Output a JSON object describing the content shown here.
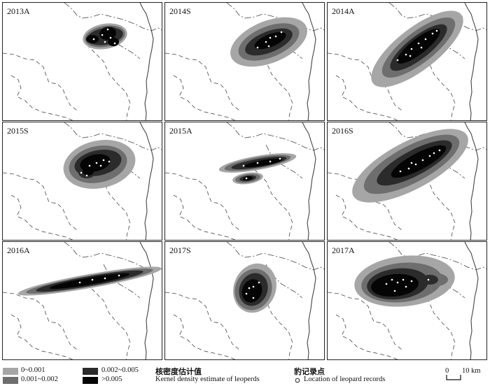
{
  "colors": {
    "d1": "#a6a6a6",
    "d2": "#6e6e6e",
    "d3": "#2b2b2b",
    "d4": "#050505",
    "point": "#ffffff",
    "boundary": "#444444"
  },
  "panels": [
    {
      "label": "2013A"
    },
    {
      "label": "2014S"
    },
    {
      "label": "2014A"
    },
    {
      "label": "2015S"
    },
    {
      "label": "2015A"
    },
    {
      "label": "2016S"
    },
    {
      "label": "2016A"
    },
    {
      "label": "2017S"
    },
    {
      "label": "2017A"
    }
  ],
  "legend": {
    "classes": [
      {
        "label": "0~0.001",
        "color": "#a6a6a6"
      },
      {
        "label": "0.001~0.002",
        "color": "#6e6e6e"
      },
      {
        "label": "0.002~0.005",
        "color": "#2b2b2b"
      },
      {
        "label": ">0.005",
        "color": "#050505"
      }
    ],
    "density_title_cn": "核密度估计值",
    "density_title_en": "Kernel density estimate of leoperds",
    "points_title_cn": "豹记录点",
    "points_title_en": "Location of leopard records",
    "scale_zero": "0",
    "scale_label": "10 km"
  }
}
